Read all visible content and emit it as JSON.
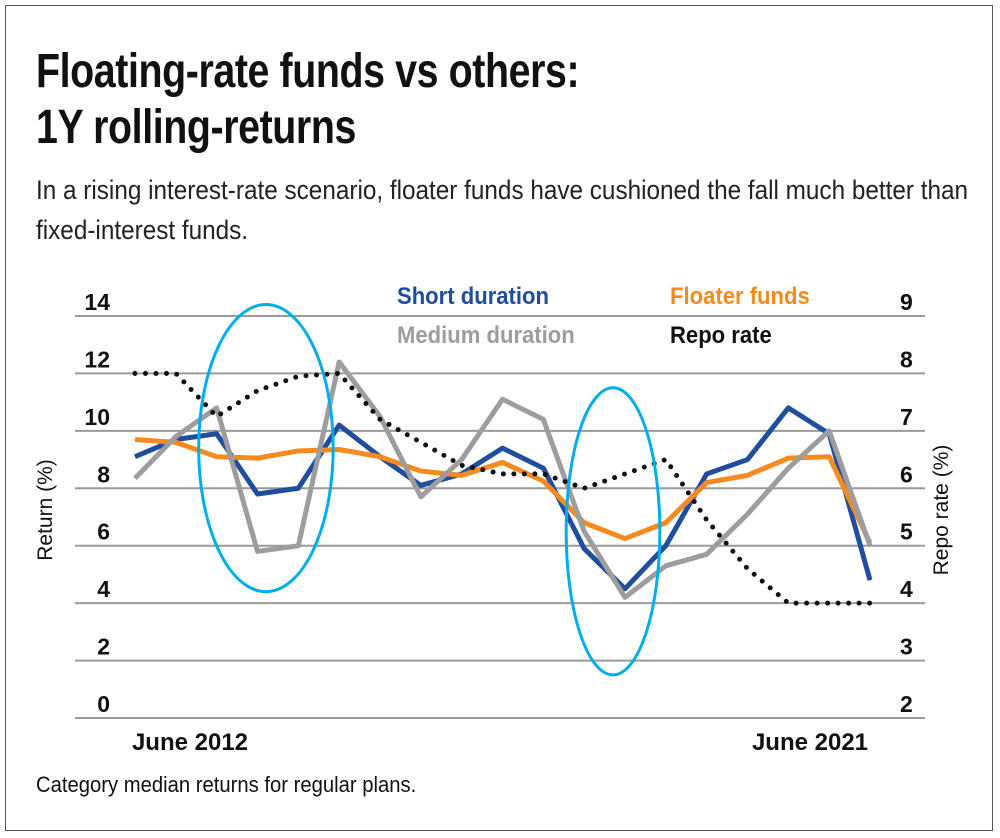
{
  "title_line1": "Floating-rate funds vs others:",
  "title_line2": "1Y rolling-returns",
  "subtitle": "In a rising interest-rate scenario, floater funds have cushioned the fall much better than fixed-interest funds.",
  "footnote": "Category median returns for regular plans.",
  "chart_data": {
    "type": "line",
    "title": "Floating-rate funds vs others: 1Y rolling-returns",
    "xlabel": "",
    "ylabel": "Return (%)",
    "y2label": "Repo rate (%)",
    "ylim": [
      0,
      14
    ],
    "y2lim": [
      2,
      9
    ],
    "yticks": [
      "0",
      "2",
      "4",
      "6",
      "8",
      "10",
      "12",
      "14"
    ],
    "y2ticks": [
      "2",
      "3",
      "4",
      "5",
      "6",
      "7",
      "8",
      "9"
    ],
    "x_tick_labels": {
      "first": "June 2012",
      "last": "June 2021"
    },
    "n_points": 19,
    "grid": true,
    "legend_placement": "top",
    "series": [
      {
        "name": "Short duration",
        "axis": "left",
        "color": "#1f4e9f",
        "style": "solid",
        "values": [
          9.1,
          9.7,
          9.9,
          7.8,
          8.0,
          10.2,
          9.1,
          8.1,
          8.5,
          9.4,
          8.7,
          5.9,
          4.5,
          6.0,
          8.5,
          9.0,
          10.8,
          9.9,
          4.8
        ]
      },
      {
        "name": "Floater funds",
        "axis": "left",
        "color": "#f58a1f",
        "style": "solid",
        "values": [
          9.7,
          9.6,
          9.1,
          9.05,
          9.3,
          9.35,
          9.1,
          8.6,
          8.45,
          8.9,
          8.25,
          6.8,
          6.25,
          6.8,
          8.2,
          8.45,
          9.05,
          9.1,
          6.1
        ]
      },
      {
        "name": "Medium duration",
        "axis": "left",
        "color": "#9d9d9f",
        "style": "solid",
        "values": [
          8.35,
          9.8,
          10.8,
          5.8,
          6.0,
          12.4,
          10.5,
          7.7,
          9.0,
          11.1,
          10.4,
          6.5,
          4.2,
          5.3,
          5.7,
          7.1,
          8.7,
          10.0,
          6.0
        ]
      },
      {
        "name": "Repo rate",
        "axis": "right",
        "color": "#111111",
        "style": "dotted",
        "values": [
          8.0,
          8.0,
          7.25,
          7.7,
          7.95,
          8.0,
          7.2,
          6.8,
          6.4,
          6.25,
          6.25,
          6.0,
          6.25,
          6.5,
          5.45,
          4.6,
          4.0,
          4.0,
          4.0
        ]
      }
    ],
    "annotations": [
      {
        "type": "ellipse",
        "color": "#00aeef",
        "x_index_range": [
          2,
          5
        ],
        "y_range": [
          4.4,
          14.4
        ]
      },
      {
        "type": "ellipse",
        "color": "#00aeef",
        "x_index_range": [
          11,
          13
        ],
        "y_range": [
          1.5,
          11.5
        ]
      }
    ]
  }
}
